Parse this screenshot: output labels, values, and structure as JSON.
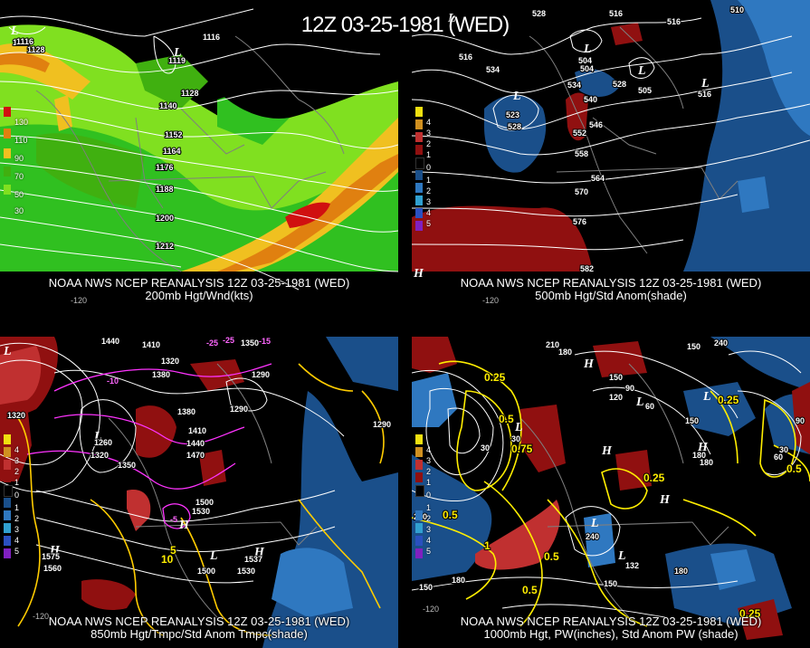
{
  "title": "12Z 03-25-1981 (WED)",
  "panels": [
    {
      "caption_line1": "NOAA NWS NCEP REANALYSIS 12Z 03-25-1981 (WED)",
      "caption_line2": "200mb Hgt/Wnd(kts)",
      "legend": [
        {
          "label": "130",
          "color": "#d01010"
        },
        {
          "label": "110",
          "color": "#e08010"
        },
        {
          "label": "90",
          "color": "#f0c020"
        },
        {
          "label": "70",
          "color": "#40b010"
        },
        {
          "label": "50",
          "color": "#80e020"
        },
        {
          "label": "30",
          "color": "#30c020"
        }
      ],
      "contour_labels": [
        "1116",
        "1128",
        "1140",
        "1152",
        "1164",
        "1176",
        "1188",
        "1200",
        "1212",
        "1116",
        "1128"
      ],
      "centers": [
        "L",
        "L"
      ],
      "center_values": [
        "1116",
        "1119"
      ],
      "lon_labels": [
        "-120"
      ]
    },
    {
      "caption_line1": "NOAA NWS NCEP REANALYSIS 12Z 03-25-1981 (WED)",
      "caption_line2": "500mb Hgt/Std Anom(shade)",
      "legend": [
        {
          "label": "4",
          "color": "#f0e010"
        },
        {
          "label": "3",
          "color": "#d09020"
        },
        {
          "label": "2",
          "color": "#c03030"
        },
        {
          "label": "1",
          "color": "#901010"
        },
        {
          "label": "0",
          "color": "#000000"
        },
        {
          "label": "1",
          "color": "#1a4f8a"
        },
        {
          "label": "2",
          "color": "#2f78c0"
        },
        {
          "label": "3",
          "color": "#30a0d0"
        },
        {
          "label": "4",
          "color": "#2a50c0"
        },
        {
          "label": "5",
          "color": "#8020c0"
        }
      ],
      "contour_labels": [
        "528",
        "516",
        "510",
        "516",
        "534",
        "504",
        "516",
        "528",
        "540",
        "546",
        "552",
        "558",
        "564",
        "570",
        "576",
        "582",
        "534",
        "528"
      ],
      "centers": [
        "L",
        "L",
        "L",
        "L",
        "L",
        "H"
      ],
      "center_values": [
        "523",
        "504",
        "505",
        "516"
      ],
      "lon_labels": [
        "-120"
      ]
    },
    {
      "caption_line1": "NOAA NWS NCEP REANALYSIS 12Z 03-25-1981 (WED)",
      "caption_line2": "850mb Hgt/Tmpc/Std Anom Tmpc(shade)",
      "legend": [
        {
          "label": "4",
          "color": "#f0e010"
        },
        {
          "label": "3",
          "color": "#d09020"
        },
        {
          "label": "2",
          "color": "#c03030"
        },
        {
          "label": "1",
          "color": "#901010"
        },
        {
          "label": "0",
          "color": "#000000"
        },
        {
          "label": "1",
          "color": "#1a4f8a"
        },
        {
          "label": "2",
          "color": "#2f78c0"
        },
        {
          "label": "3",
          "color": "#30a0d0"
        },
        {
          "label": "4",
          "color": "#2a50c0"
        },
        {
          "label": "5",
          "color": "#8020c0"
        }
      ],
      "contour_labels": [
        "1440",
        "1410",
        "1320",
        "1350",
        "1380",
        "1290",
        "1320",
        "1380",
        "1410",
        "1440",
        "1470",
        "1500",
        "1530",
        "1560",
        "1500",
        "1530",
        "1290",
        "1320",
        "1350",
        "1290",
        "1260"
      ],
      "temp_labels": [
        "-25",
        "-25",
        "-15",
        "-10",
        "-5",
        "5",
        "10"
      ],
      "centers": [
        "L",
        "L",
        "H",
        "L",
        "H",
        "H"
      ],
      "center_values": [
        "1260",
        "1575",
        "1537"
      ],
      "lon_labels": [
        "-120"
      ]
    },
    {
      "caption_line1": "NOAA NWS NCEP REANALYSIS 12Z 03-25-1981 (WED)",
      "caption_line2": "1000mb Hgt, PW(inches), Std Anom PW (shade)",
      "legend": [
        {
          "label": "4",
          "color": "#f0e010"
        },
        {
          "label": "3",
          "color": "#d09020"
        },
        {
          "label": "2",
          "color": "#c03030"
        },
        {
          "label": "1",
          "color": "#901010"
        },
        {
          "label": "0",
          "color": "#000000"
        },
        {
          "label": "1",
          "color": "#1a4f8a"
        },
        {
          "label": "2",
          "color": "#2f78c0"
        },
        {
          "label": "3",
          "color": "#30a0d0"
        },
        {
          "label": "4",
          "color": "#2a50c0"
        },
        {
          "label": "5",
          "color": "#8020c0"
        }
      ],
      "contour_labels": [
        "210",
        "180",
        "150",
        "120",
        "90",
        "60",
        "30",
        "150",
        "180",
        "150",
        "240",
        "210",
        "180",
        "150",
        "180",
        "150",
        "240",
        "90",
        "60",
        "30"
      ],
      "pw_labels": [
        "0.25",
        "0.5",
        "0.5",
        "0.75",
        "0.5",
        "1",
        "0.5",
        "0.25",
        "0.25",
        "0.5",
        "0.25"
      ],
      "centers": [
        "L",
        "L",
        "H",
        "H",
        "H",
        "H",
        "L",
        "L",
        "L"
      ],
      "center_values": [
        "132",
        "30",
        "180"
      ],
      "lon_labels": [
        "-120"
      ]
    }
  ]
}
